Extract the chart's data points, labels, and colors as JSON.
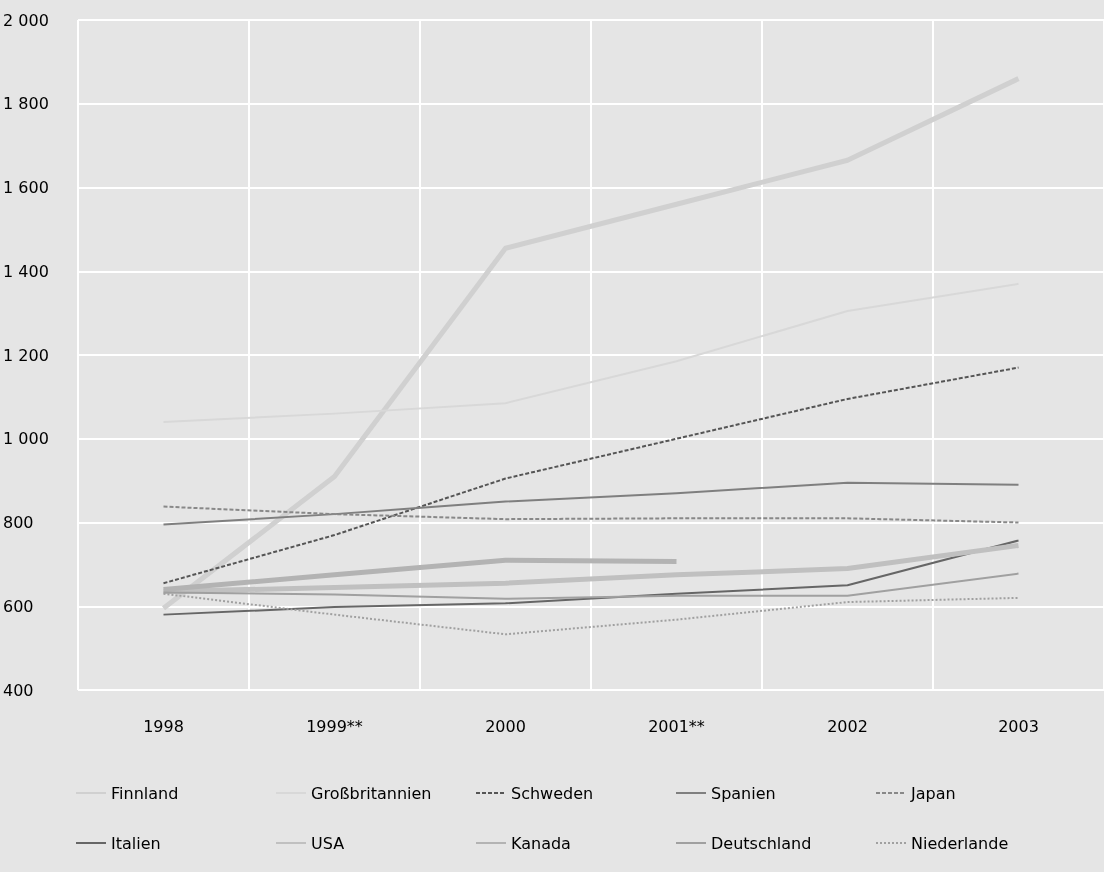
{
  "chart_data": {
    "type": "line",
    "categories": [
      "1998",
      "1999**",
      "2000",
      "2001**",
      "2002",
      "2003"
    ],
    "series": [
      {
        "name": "Finnland",
        "color": "#d0d0d0",
        "values": [
          595,
          910,
          1455,
          1560,
          1665,
          1860
        ]
      },
      {
        "name": "Großbritannien",
        "color": "#d8d8d8",
        "values": [
          1040,
          1060,
          1085,
          1185,
          1305,
          1370
        ]
      },
      {
        "name": "Schweden",
        "color": "#555555",
        "line_style": "dashed",
        "values": [
          655,
          770,
          905,
          1000,
          1095,
          1170
        ]
      },
      {
        "name": "Spanien",
        "color": "#7f7f7f",
        "values": [
          795,
          820,
          850,
          870,
          895,
          890
        ]
      },
      {
        "name": "Japan",
        "color": "#888888",
        "line_style": "dashed",
        "values": [
          838,
          820,
          808,
          810,
          810,
          800
        ]
      },
      {
        "name": "Italien",
        "color": "#666666",
        "values": [
          580,
          598,
          607,
          630,
          650,
          757
        ]
      },
      {
        "name": "USA",
        "color": "#c0c0c0",
        "values": [
          635,
          645,
          655,
          675,
          690,
          745
        ]
      },
      {
        "name": "Kanada",
        "color": "#b3b3b3",
        "values": [
          640,
          675,
          710,
          707,
          null,
          null
        ]
      },
      {
        "name": "Deutschland",
        "color": "#a0a0a0",
        "values": [
          633,
          628,
          618,
          625,
          625,
          678
        ]
      },
      {
        "name": "Niederlande",
        "color": "#a0a0a0",
        "line_style": "dotted",
        "values": [
          630,
          580,
          533,
          568,
          610,
          620
        ]
      }
    ],
    "ylim": [
      400,
      2000
    ],
    "yticks": [
      400,
      600,
      800,
      {
        "value": 1000,
        "label": "1 000"
      },
      {
        "value": 1200,
        "label": "1 200"
      },
      {
        "value": 1400,
        "label": "1 400"
      },
      {
        "value": 1600,
        "label": "1 600"
      },
      {
        "value": 1800,
        "label": "1 800"
      },
      {
        "value": 2000,
        "label": "2 000"
      }
    ],
    "grid": true,
    "legend": "bottom",
    "marker": "none"
  }
}
